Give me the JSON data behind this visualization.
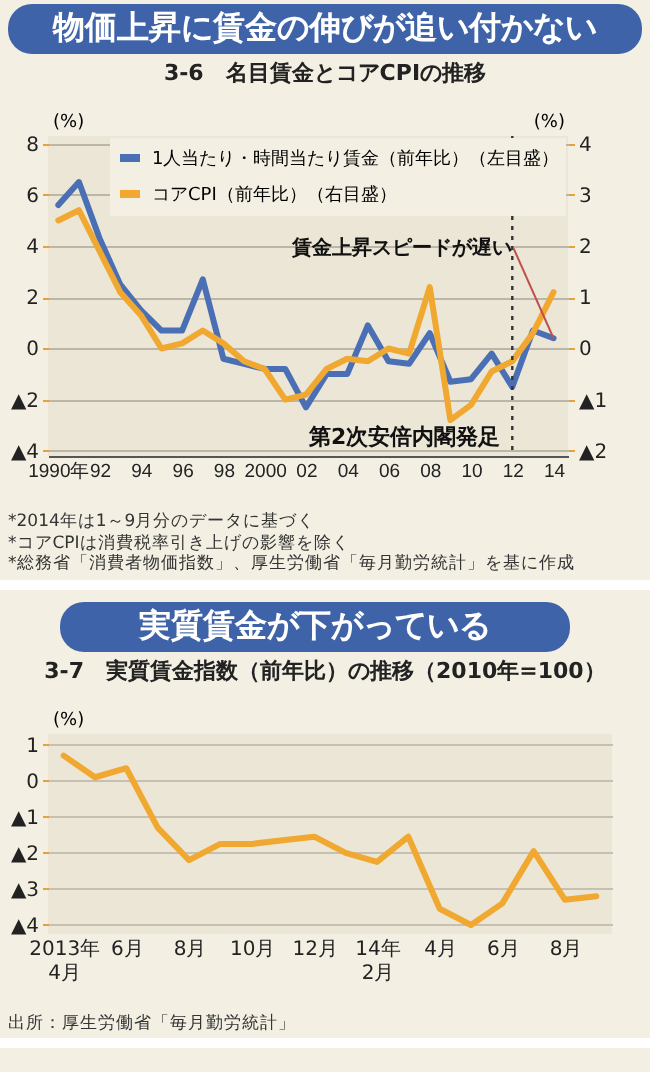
{
  "chart_data": [
    {
      "type": "line",
      "title": "物価上昇に賃金の伸びが追い付かない",
      "subtitle": "3-6　名目賃金とコアCPIの推移",
      "x": [
        1990,
        1991,
        1992,
        1993,
        1994,
        1995,
        1996,
        1997,
        1998,
        1999,
        2000,
        2001,
        2002,
        2003,
        2004,
        2005,
        2006,
        2007,
        2008,
        2009,
        2010,
        2011,
        2012,
        2013,
        2014
      ],
      "series": [
        {
          "name": "1人当たり・時間当たり賃金（前年比）（左目盛）",
          "color": "#4a6fb5",
          "values": [
            5.6,
            6.5,
            4.3,
            2.5,
            1.5,
            0.7,
            0.7,
            2.7,
            -0.4,
            -0.6,
            -0.8,
            -0.8,
            -2.3,
            -1.0,
            -1.0,
            0.9,
            -0.5,
            -0.6,
            0.6,
            -1.3,
            -1.2,
            -0.2,
            -1.5,
            0.7,
            0.4
          ]
        },
        {
          "name": "コアCPI（前年比）（右目盛）",
          "color": "#f0a830",
          "axis": "y2",
          "values": [
            2.5,
            2.7,
            1.9,
            1.1,
            0.65,
            0.0,
            0.1,
            0.35,
            0.1,
            -0.25,
            -0.4,
            -1.0,
            -0.9,
            -0.4,
            -0.2,
            -0.25,
            0.0,
            -0.1,
            1.2,
            -1.4,
            -1.1,
            -0.45,
            -0.25,
            0.3,
            1.1
          ]
        }
      ],
      "xlim": [
        1989.5,
        2014.7
      ],
      "xticks": [
        {
          "value": 1990,
          "label": "1990年"
        },
        {
          "value": 1992,
          "label": "92"
        },
        {
          "value": 1994,
          "label": "94"
        },
        {
          "value": 1996,
          "label": "96"
        },
        {
          "value": 1998,
          "label": "98"
        },
        {
          "value": 2000,
          "label": "2000"
        },
        {
          "value": 2002,
          "label": "02"
        },
        {
          "value": 2004,
          "label": "04"
        },
        {
          "value": 2006,
          "label": "06"
        },
        {
          "value": 2008,
          "label": "08"
        },
        {
          "value": 2010,
          "label": "10"
        },
        {
          "value": 2012,
          "label": "12"
        },
        {
          "value": 2014,
          "label": "14"
        }
      ],
      "ylim": [
        -4.2,
        8.3
      ],
      "yticks": [
        {
          "value": -4,
          "label": "▲4"
        },
        {
          "value": -2,
          "label": "▲2"
        },
        0,
        2,
        4,
        6,
        8
      ],
      "y2lim": [
        -2.1,
        4.15
      ],
      "y2ticks": [
        {
          "value": -2,
          "label": "▲2"
        },
        {
          "value": -1,
          "label": "▲1"
        },
        0,
        1,
        2,
        3,
        4
      ],
      "ylabel": "(%)",
      "y2label": "(%)",
      "ref_lines": [
        {
          "axis": "x",
          "value": 2012,
          "label": "第2次安倍内閣発足",
          "color": "#333333",
          "line_style": "dotted"
        }
      ],
      "annotations": [
        {
          "text": "賃金上昇スピードが遅い",
          "x": 2014,
          "y": 0.4
        },
        "*2014年は1～9月分のデータに基づく",
        "*コアCPIは消費税率引き上げの影響を除く",
        "*総務省「消費者物価指数」、厚生労働省「毎月勤労統計」を基に作成"
      ],
      "grid": "y",
      "legend": "top left",
      "marker": "none",
      "line_style": "solid"
    },
    {
      "type": "line",
      "title": "実質賃金が下がっている",
      "subtitle": "3-7　実質賃金指数（前年比）の推移（2010年=100）",
      "categories": [
        "2013年\n4月",
        null,
        "6月",
        null,
        "8月",
        null,
        "10月",
        null,
        "12月",
        null,
        "14年\n2月",
        null,
        "4月",
        null,
        "6月",
        null,
        "8月",
        null
      ],
      "series": [
        {
          "color": "#f0a830",
          "values": [
            0.7,
            0.1,
            0.35,
            -1.3,
            -2.2,
            -1.75,
            -1.75,
            -1.65,
            -1.55,
            -2.0,
            -2.25,
            -1.55,
            -3.55,
            -4.0,
            -3.4,
            -1.95,
            -3.3,
            -3.2
          ]
        }
      ],
      "ylim": [
        -4.25,
        1.3
      ],
      "yticks": [
        {
          "value": -4,
          "label": "▲4"
        },
        {
          "value": -3,
          "label": "▲3"
        },
        {
          "value": -2,
          "label": "▲2"
        },
        {
          "value": -1,
          "label": "▲1"
        },
        0,
        1
      ],
      "ylabel": "(%)",
      "annotations": [
        "出所：厚生労働省「毎月勤労統計」"
      ],
      "grid": "y",
      "legend": false,
      "marker": "none",
      "line_style": "solid"
    }
  ]
}
